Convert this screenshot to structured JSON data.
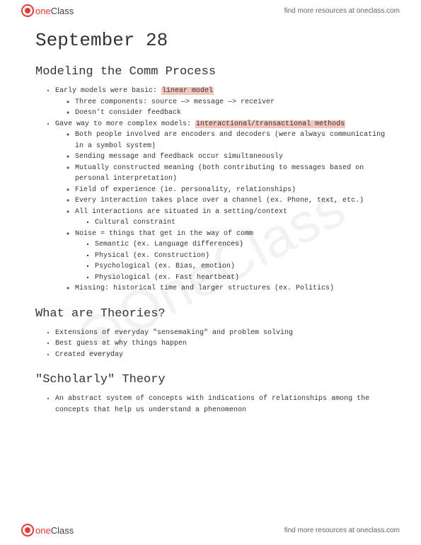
{
  "brand": {
    "name_part1": "one",
    "name_part2": "Class",
    "tagline": "find more resources at oneclass.com"
  },
  "page": {
    "title": "September 28"
  },
  "sections": [
    {
      "heading": "Modeling the Comm Process",
      "bullets": [
        {
          "prefix": "Early models were basic: ",
          "highlight": "linear model",
          "children": [
            {
              "text": "Three components: source —> message —> receiver"
            },
            {
              "text": "Doesn't consider feedback"
            }
          ]
        },
        {
          "prefix": "Gave way to more complex models: ",
          "highlight": "interactional/transactional methods",
          "children": [
            {
              "text": "Both people involved are encoders and decoders (were always communicating in a symbol system)"
            },
            {
              "text": "Sending message and feedback occur simultaneously"
            },
            {
              "text": "Mutually constructed meaning (both contributing to messages based on personal interpretation)"
            },
            {
              "text": "Field of experience (ie. personality, relationships)"
            },
            {
              "text": "Every interaction takes place over a channel (ex. Phone, text, etc.)"
            },
            {
              "text": "All interactions are situated in a setting/context",
              "children": [
                {
                  "text": "Cultural constraint"
                }
              ]
            },
            {
              "text": "Noise = things that get in the way of comm",
              "children": [
                {
                  "text": "Semantic (ex. Language differences)"
                },
                {
                  "text": "Physical (ex. Construction)"
                },
                {
                  "text": "Psychological (ex. Bias, emotion)"
                },
                {
                  "text": "Physiological (ex. Fast heartbeat)"
                }
              ]
            },
            {
              "text": "Missing: historical time and larger structures (ex. Politics)"
            }
          ]
        }
      ]
    },
    {
      "heading": "What are Theories?",
      "bullets": [
        {
          "text": "Extensions of everyday \"sensemaking\" and problem solving"
        },
        {
          "text": "Best guess at why things happen"
        },
        {
          "text": "Created everyday"
        }
      ]
    },
    {
      "heading": "\"Scholarly\" Theory",
      "bullets": [
        {
          "text": "An abstract system of concepts with indications of relationships among the concepts that help us understand a phenomenon"
        }
      ]
    }
  ],
  "colors": {
    "highlight_bg": "#f2c6bd",
    "brand_red": "#e53935",
    "text": "#333333"
  }
}
